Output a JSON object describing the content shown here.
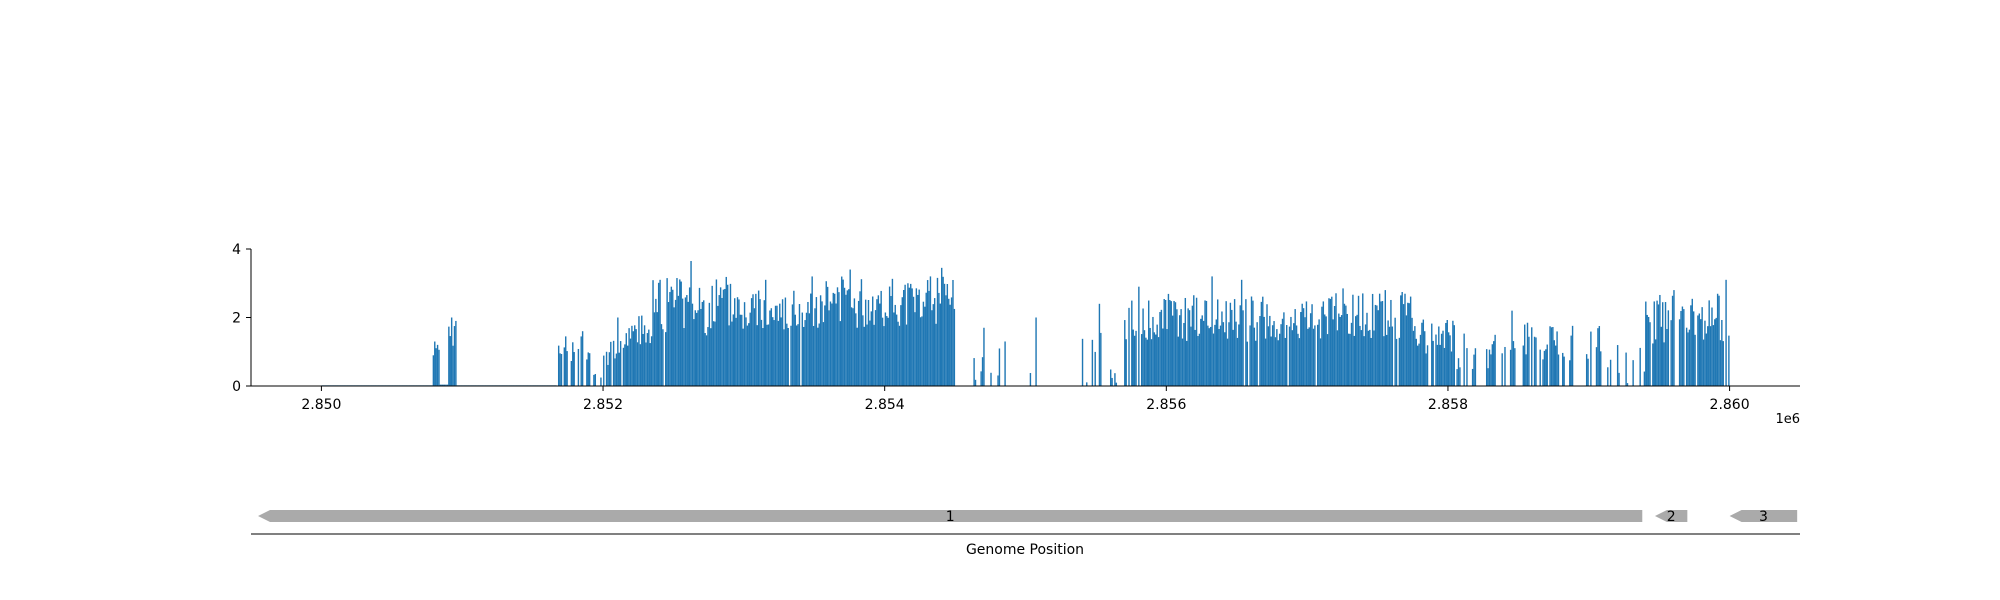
{
  "chart_data": [
    {
      "type": "bar",
      "title": "",
      "xlabel": "",
      "ylabel": "",
      "xlim": [
        2849500,
        2860500
      ],
      "ylim": [
        0,
        4
      ],
      "x_ticks": [
        "2.850",
        "2.852",
        "2.854",
        "2.856",
        "2.858",
        "2.860"
      ],
      "x_tick_values": [
        2850000,
        2852000,
        2854000,
        2856000,
        2858000,
        2860000
      ],
      "y_ticks": [
        "0",
        "2",
        "4"
      ],
      "y_tick_values": [
        0,
        2,
        4
      ],
      "offset_label": "1e6",
      "color": "#1f77b4",
      "grid": false,
      "bin_width": 10,
      "series": [
        {
          "segments": [
            {
              "start": 2850000,
              "end": 2850790,
              "base": 0.02,
              "amp": 0,
              "seed": 0,
              "gap": 0
            },
            {
              "start": 2850790,
              "end": 2850840,
              "base": 1.15,
              "amp": 0.35,
              "seed": 1,
              "gap": 0.15
            },
            {
              "start": 2850840,
              "end": 2850900,
              "base": 0.04,
              "amp": 0,
              "seed": 0,
              "gap": 0
            },
            {
              "start": 2850900,
              "end": 2850960,
              "base": 1.3,
              "amp": 0.5,
              "seed": 2,
              "gap": 0.2
            },
            {
              "start": 2850960,
              "end": 2851670,
              "base": 0.02,
              "amp": 0,
              "seed": 0,
              "gap": 0
            },
            {
              "start": 2851670,
              "end": 2851930,
              "base": 1.1,
              "amp": 0.4,
              "seed": 3,
              "gap": 0.35
            },
            {
              "start": 2851930,
              "end": 2852000,
              "base": 0.3,
              "amp": 0.5,
              "seed": 4,
              "gap": 0.6
            },
            {
              "start": 2852000,
              "end": 2852150,
              "base": 1.05,
              "amp": 0.45,
              "seed": 5,
              "gap": 0.3
            },
            {
              "start": 2852150,
              "end": 2852350,
              "base": 1.6,
              "amp": 0.5,
              "seed": 6,
              "gap": 0.05
            },
            {
              "start": 2852350,
              "end": 2853000,
              "base": 2.35,
              "amp": 0.9,
              "seed": 7,
              "gap": 0.03
            },
            {
              "start": 2853000,
              "end": 2853450,
              "base": 2.2,
              "amp": 0.6,
              "seed": 8,
              "gap": 0.02
            },
            {
              "start": 2853450,
              "end": 2854000,
              "base": 2.45,
              "amp": 0.75,
              "seed": 9,
              "gap": 0.02
            },
            {
              "start": 2854000,
              "end": 2854500,
              "base": 2.45,
              "amp": 0.75,
              "seed": 10,
              "gap": 0.03
            },
            {
              "start": 2854500,
              "end": 2855400,
              "base": 0.3,
              "amp": 1.0,
              "seed": 11,
              "gap": 0.86
            },
            {
              "start": 2855400,
              "end": 2855560,
              "base": 0.6,
              "amp": 1.0,
              "seed": 12,
              "gap": 0.55
            },
            {
              "start": 2855560,
              "end": 2855700,
              "base": 0.2,
              "amp": 0.5,
              "seed": 13,
              "gap": 0.8
            },
            {
              "start": 2855700,
              "end": 2856000,
              "base": 1.95,
              "amp": 0.6,
              "seed": 14,
              "gap": 0.08
            },
            {
              "start": 2856000,
              "end": 2856700,
              "base": 2.0,
              "amp": 0.75,
              "seed": 15,
              "gap": 0.05
            },
            {
              "start": 2856700,
              "end": 2857150,
              "base": 1.9,
              "amp": 0.6,
              "seed": 16,
              "gap": 0.05
            },
            {
              "start": 2857150,
              "end": 2857750,
              "base": 2.05,
              "amp": 0.7,
              "seed": 17,
              "gap": 0.04
            },
            {
              "start": 2857750,
              "end": 2858050,
              "base": 1.45,
              "amp": 0.5,
              "seed": 18,
              "gap": 0.12
            },
            {
              "start": 2858050,
              "end": 2858500,
              "base": 1.0,
              "amp": 0.55,
              "seed": 19,
              "gap": 0.45
            },
            {
              "start": 2858500,
              "end": 2859100,
              "base": 1.3,
              "amp": 0.55,
              "seed": 20,
              "gap": 0.35
            },
            {
              "start": 2859100,
              "end": 2859400,
              "base": 0.6,
              "amp": 0.6,
              "seed": 21,
              "gap": 0.6
            },
            {
              "start": 2859400,
              "end": 2860000,
              "base": 1.95,
              "amp": 0.75,
              "seed": 22,
              "gap": 0.2
            }
          ],
          "peaks": [
            [
              2852620,
              3.65
            ],
            [
              2852450,
              3.15
            ],
            [
              2852550,
              3.05
            ],
            [
              2852400,
              3.1
            ],
            [
              2853750,
              3.4
            ],
            [
              2854400,
              3.45
            ],
            [
              2854320,
              3.2
            ],
            [
              2853150,
              3.1
            ],
            [
              2852100,
              2.0
            ],
            [
              2851850,
              1.6
            ],
            [
              2850920,
              2.0
            ],
            [
              2850950,
              1.9
            ],
            [
              2855520,
              2.4
            ],
            [
              2855070,
              2.0
            ],
            [
              2854700,
              1.7
            ],
            [
              2854850,
              1.3
            ],
            [
              2856320,
              3.2
            ],
            [
              2856530,
              3.1
            ],
            [
              2856190,
              2.65
            ],
            [
              2857250,
              2.85
            ],
            [
              2858450,
              2.2
            ],
            [
              2859600,
              2.8
            ],
            [
              2859970,
              3.1
            ],
            [
              2855800,
              2.9
            ],
            [
              2857550,
              2.8
            ],
            [
              2859850,
              2.5
            ]
          ]
        }
      ]
    },
    {
      "type": "gene-track",
      "xlabel": "Genome Position",
      "color": "#aaaaaa",
      "features": [
        {
          "label": "1",
          "start": 2849550,
          "end": 2859380,
          "strand": "-"
        },
        {
          "label": "2",
          "start": 2859470,
          "end": 2859700,
          "strand": "-"
        },
        {
          "label": "3",
          "start": 2860000,
          "end": 2860480,
          "strand": "-"
        }
      ]
    }
  ]
}
